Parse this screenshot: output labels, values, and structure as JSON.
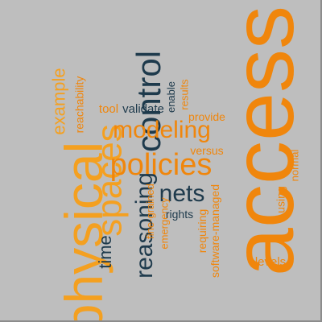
{
  "colors": {
    "background": "#bebebe",
    "orange": "#f0860c",
    "dark": "#1e3a4c",
    "amber": "#f4a020"
  },
  "words": [
    {
      "text": "access",
      "rotated": true,
      "color": "orange"
    },
    {
      "text": "physical",
      "rotated": true,
      "color": "amber"
    },
    {
      "text": "spaces",
      "rotated": true,
      "color": "amber"
    },
    {
      "text": "control",
      "rotated": true,
      "color": "dark"
    },
    {
      "text": "policies",
      "rotated": false,
      "color": "orange"
    },
    {
      "text": "reasoning",
      "rotated": true,
      "color": "dark"
    },
    {
      "text": "modeling",
      "rotated": false,
      "color": "orange"
    },
    {
      "text": "nets",
      "rotated": false,
      "color": "dark"
    },
    {
      "text": "time",
      "rotated": true,
      "color": "dark"
    },
    {
      "text": "example",
      "rotated": true,
      "color": "amber"
    },
    {
      "text": "reachability",
      "rotated": true,
      "color": "orange"
    },
    {
      "text": "tool",
      "rotated": false,
      "color": "orange"
    },
    {
      "text": "validate",
      "rotated": false,
      "color": "dark"
    },
    {
      "text": "enable",
      "rotated": true,
      "color": "dark"
    },
    {
      "text": "results",
      "rotated": true,
      "color": "orange"
    },
    {
      "text": "provide",
      "rotated": false,
      "color": "orange"
    },
    {
      "text": "versus",
      "rotated": false,
      "color": "orange"
    },
    {
      "text": "fine-grained",
      "rotated": true,
      "color": "orange"
    },
    {
      "text": "emergency",
      "rotated": true,
      "color": "orange"
    },
    {
      "text": "rights",
      "rotated": false,
      "color": "dark"
    },
    {
      "text": "requiring",
      "rotated": true,
      "color": "orange"
    },
    {
      "text": "software-managed",
      "rotated": true,
      "color": "orange"
    },
    {
      "text": "using",
      "rotated": true,
      "color": "orange"
    },
    {
      "text": "normal",
      "rotated": true,
      "color": "orange"
    },
    {
      "text": "levels",
      "rotated": false,
      "color": "orange"
    }
  ]
}
